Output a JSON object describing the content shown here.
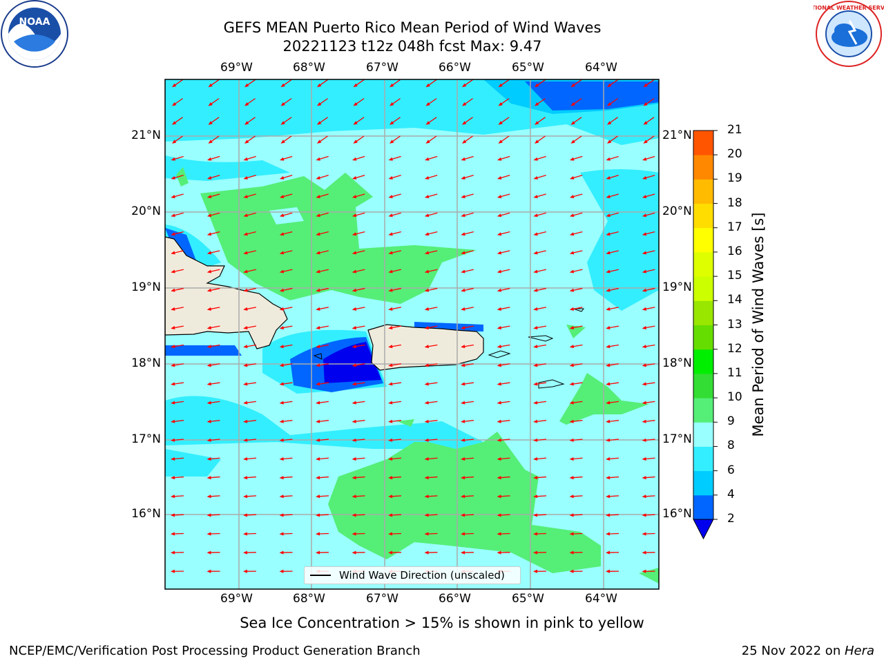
{
  "title": {
    "line1": "GEFS MEAN Puerto Rico Mean Period of Wind Waves",
    "line2": "20221123 t12z 048h fcst   Max: 9.47"
  },
  "map": {
    "lon_ticks": [
      "69°W",
      "68°W",
      "67°W",
      "66°W",
      "65°W",
      "64°W"
    ],
    "lat_ticks": [
      "21°N",
      "20°N",
      "19°N",
      "18°N",
      "17°N",
      "16°N"
    ],
    "legend_label": "Wind Wave Direction (unscaled)",
    "arrow_color": "#ff0000",
    "land_color": "#efebdc"
  },
  "colorbar": {
    "label": "Mean Period of Wind Waves [s]",
    "levels": [
      2,
      4,
      6,
      8,
      9,
      10,
      11,
      12,
      13,
      14,
      15,
      16,
      17,
      18,
      19,
      20,
      21
    ],
    "colors": [
      "#0066ff",
      "#00ccff",
      "#33eeff",
      "#99ffff",
      "#55ee77",
      "#33dd33",
      "#00ee00",
      "#66dd00",
      "#99e600",
      "#ccff00",
      "#ddff00",
      "#ffff00",
      "#ffdd00",
      "#ffbb00",
      "#ff8800",
      "#ff5500",
      "#ff2200",
      "#ff0000"
    ],
    "under_color": "#0000ee"
  },
  "subtitle": "Sea Ice Concentration > 15% is shown in pink to yellow",
  "footer": {
    "left": "NCEP/EMC/Verification Post Processing Product Generation Branch",
    "right_date": "25 Nov 2022 on ",
    "right_host": "Hera"
  },
  "logos": {
    "noaa_text": "NOAA",
    "nws_text": "NATIONAL WEATHER SERVICE"
  }
}
